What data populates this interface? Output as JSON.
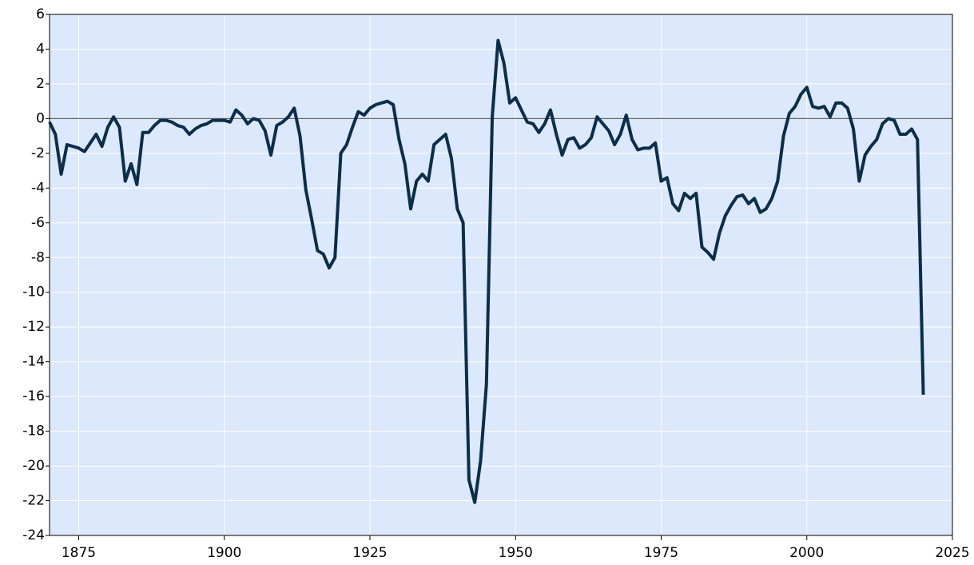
{
  "chart_data": {
    "type": "line",
    "x": [
      1870,
      1871,
      1872,
      1873,
      1874,
      1875,
      1876,
      1877,
      1878,
      1879,
      1880,
      1881,
      1882,
      1883,
      1884,
      1885,
      1886,
      1887,
      1888,
      1889,
      1890,
      1891,
      1892,
      1893,
      1894,
      1895,
      1896,
      1897,
      1898,
      1899,
      1900,
      1901,
      1902,
      1903,
      1904,
      1905,
      1906,
      1907,
      1908,
      1909,
      1910,
      1911,
      1912,
      1913,
      1914,
      1915,
      1916,
      1917,
      1918,
      1919,
      1920,
      1921,
      1922,
      1923,
      1924,
      1925,
      1926,
      1927,
      1928,
      1929,
      1930,
      1931,
      1932,
      1933,
      1934,
      1935,
      1936,
      1937,
      1938,
      1939,
      1940,
      1941,
      1942,
      1943,
      1944,
      1945,
      1946,
      1947,
      1948,
      1949,
      1950,
      1951,
      1952,
      1953,
      1954,
      1955,
      1956,
      1957,
      1958,
      1959,
      1960,
      1961,
      1962,
      1963,
      1964,
      1965,
      1966,
      1967,
      1968,
      1969,
      1970,
      1971,
      1972,
      1973,
      1974,
      1975,
      1976,
      1977,
      1978,
      1979,
      1980,
      1981,
      1982,
      1983,
      1984,
      1985,
      1986,
      1987,
      1988,
      1989,
      1990,
      1991,
      1992,
      1993,
      1994,
      1995,
      1996,
      1997,
      1998,
      1999,
      2000,
      2001,
      2002,
      2003,
      2004,
      2005,
      2006,
      2007,
      2008,
      2009,
      2010,
      2011,
      2012,
      2013,
      2014,
      2015,
      2016,
      2017,
      2018,
      2019,
      2020
    ],
    "series": [
      {
        "color": "#0c2e48",
        "values": [
          -0.2,
          -0.9,
          -3.2,
          -1.5,
          -1.6,
          -1.7,
          -1.9,
          -1.4,
          -0.9,
          -1.6,
          -0.5,
          0.1,
          -0.5,
          -3.6,
          -2.6,
          -3.8,
          -0.8,
          -0.8,
          -0.4,
          -0.1,
          -0.1,
          -0.2,
          -0.4,
          -0.5,
          -0.9,
          -0.6,
          -0.4,
          -0.3,
          -0.1,
          -0.1,
          -0.1,
          -0.2,
          0.5,
          0.2,
          -0.3,
          0.0,
          -0.1,
          -0.7,
          -2.1,
          -0.4,
          -0.2,
          0.1,
          0.6,
          -1.0,
          -4.1,
          -5.8,
          -7.6,
          -7.8,
          -8.6,
          -8.0,
          -2.0,
          -1.5,
          -0.5,
          0.4,
          0.2,
          0.6,
          0.8,
          0.9,
          1.0,
          0.8,
          -1.2,
          -2.6,
          -5.2,
          -3.6,
          -3.2,
          -3.6,
          -1.5,
          -1.2,
          -0.9,
          -2.3,
          -5.2,
          -6.0,
          -20.8,
          -22.1,
          -19.7,
          -15.3,
          0.1,
          4.5,
          3.2,
          0.9,
          1.2,
          0.5,
          -0.2,
          -0.3,
          -0.8,
          -0.3,
          0.5,
          -0.9,
          -2.1,
          -1.2,
          -1.1,
          -1.7,
          -1.5,
          -1.1,
          0.1,
          -0.3,
          -0.7,
          -1.5,
          -0.9,
          0.2,
          -1.2,
          -1.8,
          -1.7,
          -1.7,
          -1.4,
          -3.6,
          -3.4,
          -4.9,
          -5.3,
          -4.3,
          -4.6,
          -4.3,
          -7.4,
          -7.7,
          -8.1,
          -6.6,
          -5.6,
          -5.0,
          -4.5,
          -4.4,
          -4.9,
          -4.6,
          -5.4,
          -5.2,
          -4.6,
          -3.6,
          -1.0,
          0.3,
          0.7,
          1.4,
          1.8,
          0.7,
          0.6,
          0.7,
          0.1,
          0.9,
          0.9,
          0.6,
          -0.6,
          -3.6,
          -2.1,
          -1.6,
          -1.2,
          -0.3,
          0.0,
          -0.1,
          -0.9,
          -0.9,
          -0.6,
          -1.2,
          -15.9
        ]
      }
    ],
    "xlim": [
      1870,
      2025
    ],
    "xticks": [
      1875,
      1900,
      1925,
      1950,
      1975,
      2000,
      2025
    ],
    "ylim": [
      -24,
      6
    ],
    "yticks": [
      -24,
      -22,
      -20,
      -18,
      -16,
      -14,
      -12,
      -10,
      -8,
      -6,
      -4,
      -2,
      0,
      2,
      4,
      6
    ],
    "grid": true,
    "hline": 0
  }
}
